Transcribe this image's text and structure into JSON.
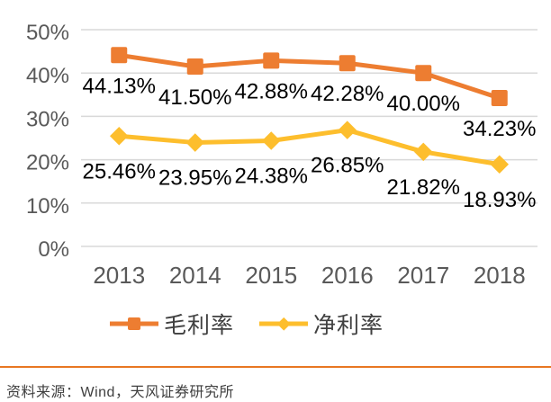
{
  "chart_data": {
    "type": "line",
    "categories": [
      "2013",
      "2014",
      "2015",
      "2016",
      "2017",
      "2018"
    ],
    "series": [
      {
        "name": "毛利率",
        "values": [
          44.13,
          41.5,
          42.88,
          42.28,
          40.0,
          34.23
        ],
        "data_labels": [
          "44.13%",
          "41.50%",
          "42.88%",
          "42.28%",
          "40.00%",
          "34.23%"
        ],
        "color": "#ED7D31",
        "marker": "square"
      },
      {
        "name": "净利率",
        "values": [
          25.46,
          23.95,
          24.38,
          26.85,
          21.82,
          18.93
        ],
        "data_labels": [
          "25.46%",
          "23.95%",
          "24.38%",
          "26.85%",
          "21.82%",
          "18.93%"
        ],
        "color": "#FDBE2D",
        "marker": "diamond"
      }
    ],
    "y_ticks": [
      {
        "value": 0,
        "label": "0%"
      },
      {
        "value": 10,
        "label": "10%"
      },
      {
        "value": 20,
        "label": "20%"
      },
      {
        "value": 30,
        "label": "30%"
      },
      {
        "value": 40,
        "label": "40%"
      },
      {
        "value": 50,
        "label": "50%"
      }
    ],
    "ylim": [
      0,
      50
    ],
    "grid": true,
    "legend_position": "bottom"
  },
  "footer": {
    "source_text": "资料来源：Wind，天风证券研究所"
  },
  "colors": {
    "gridline": "#D9D9D9",
    "axis_text": "#595959",
    "data_label_text": "#000000",
    "separator": "#E87722",
    "footer_text": "#3F3F3F"
  }
}
